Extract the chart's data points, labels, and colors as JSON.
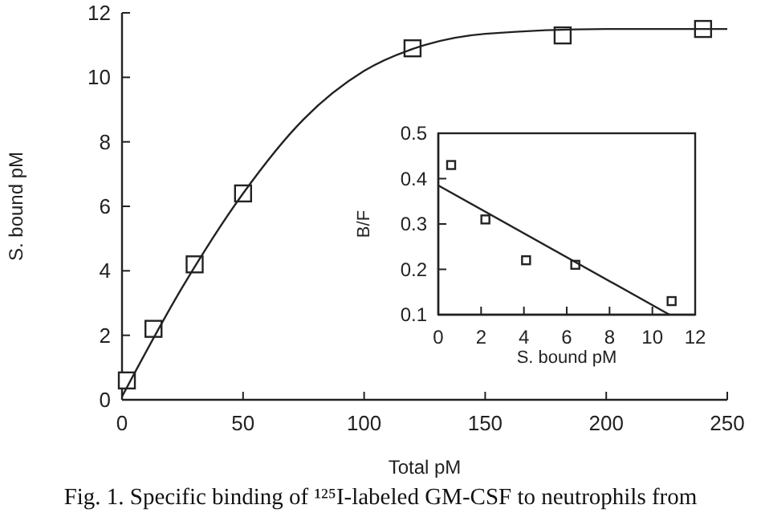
{
  "chart_data": [
    {
      "type": "scatter",
      "xlabel": "Total pM",
      "ylabel": "S. bound pM",
      "xlim": [
        0,
        250
      ],
      "ylim": [
        0,
        12
      ],
      "xticks": [
        0,
        50,
        100,
        150,
        200,
        250
      ],
      "yticks": [
        0,
        2,
        4,
        6,
        8,
        10,
        12
      ],
      "annotations": [
        "Fig. 1. Specific binding of ¹²⁵I-labeled GM-CSF to neutrophils from"
      ],
      "series": [
        {
          "color": "#222222",
          "marker": "square",
          "x": [
            2,
            13,
            30,
            50,
            120,
            182,
            240
          ],
          "values": [
            0.6,
            2.2,
            4.2,
            6.4,
            10.9,
            11.3,
            11.5
          ]
        },
        {
          "type": "line",
          "marker": "none",
          "color": "#222222",
          "x": [
            0,
            25,
            50,
            75,
            100,
            125,
            150,
            200,
            250
          ],
          "values": [
            0.1,
            3.5,
            6.4,
            8.7,
            10.2,
            11.0,
            11.35,
            11.5,
            11.5
          ]
        }
      ]
    },
    {
      "type": "scatter",
      "xlabel": "S. bound pM",
      "ylabel": "B/F",
      "xlim": [
        0,
        12
      ],
      "ylim": [
        0.1,
        0.5
      ],
      "xticks": [
        0,
        2,
        4,
        6,
        8,
        10,
        12
      ],
      "yticks": [
        0.1,
        0.2,
        0.3,
        0.4,
        0.5
      ],
      "series": [
        {
          "color": "#222222",
          "marker": "square",
          "x": [
            0.6,
            2.2,
            4.1,
            6.4,
            10.9
          ],
          "values": [
            0.43,
            0.31,
            0.22,
            0.21,
            0.13
          ]
        },
        {
          "type": "line",
          "marker": "none",
          "color": "#222222",
          "x": [
            0,
            10.8
          ],
          "values": [
            0.385,
            0.1
          ]
        }
      ]
    }
  ]
}
